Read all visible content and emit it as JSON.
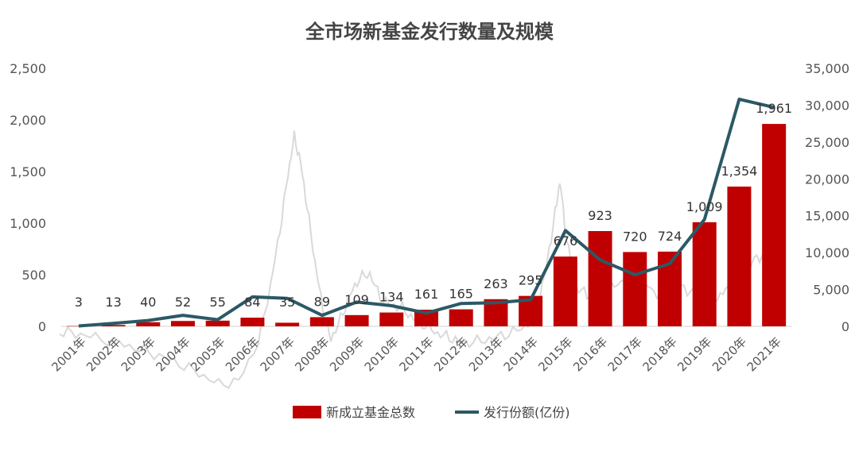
{
  "chart_data": {
    "type": "bar",
    "title": "全市场新基金发行数量及规模",
    "categories": [
      "2001年",
      "2002年",
      "2003年",
      "2004年",
      "2005年",
      "2006年",
      "2007年",
      "2008年",
      "2009年",
      "2010年",
      "2011年",
      "2012年",
      "2013年",
      "2014年",
      "2015年",
      "2016年",
      "2017年",
      "2018年",
      "2019年",
      "2020年",
      "2021年"
    ],
    "series": [
      {
        "name": "新成立基金总数",
        "type": "bar",
        "axis": "left",
        "color": "#C00000",
        "values": [
          3,
          13,
          40,
          52,
          55,
          84,
          35,
          89,
          109,
          134,
          161,
          165,
          263,
          295,
          676,
          923,
          720,
          724,
          1009,
          1354,
          1961
        ],
        "value_labels": [
          "3",
          "13",
          "40",
          "52",
          "55",
          "84",
          "35",
          "89",
          "109",
          "134",
          "161",
          "165",
          "263",
          "295",
          "676",
          "923",
          "720",
          "724",
          "1,009",
          "1,354",
          "1,961"
        ]
      },
      {
        "name": "发行份额(亿份)",
        "type": "line",
        "axis": "right",
        "color": "#2B5966",
        "values": [
          50,
          400,
          800,
          1500,
          900,
          4000,
          3800,
          1500,
          3300,
          2800,
          1800,
          3100,
          3200,
          3600,
          13000,
          9000,
          7000,
          8500,
          14500,
          30800,
          29700
        ]
      }
    ],
    "left_axis": {
      "min": 0,
      "max": 2500,
      "ticks": [
        "0",
        "500",
        "1,000",
        "1,500",
        "2,000",
        "2,500"
      ]
    },
    "right_axis": {
      "min": 0,
      "max": 35000,
      "ticks": [
        "0",
        "5,000",
        "10,000",
        "15,000",
        "20,000",
        "25,000",
        "30,000",
        "35,000"
      ]
    },
    "background_trace_color": "#D9D9D9",
    "legend_position": "bottom",
    "grid": false
  }
}
